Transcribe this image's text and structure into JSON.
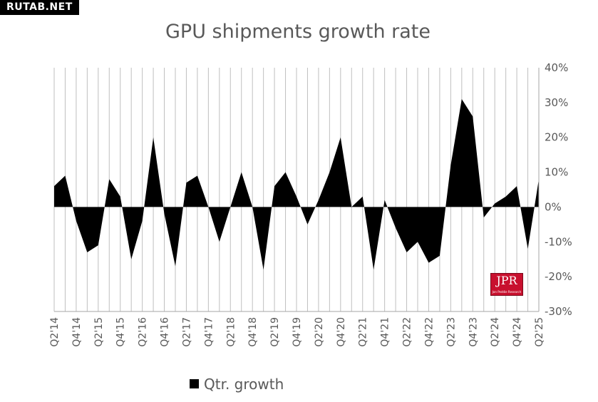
{
  "watermark": "RUTAB.NET",
  "logo": {
    "main": "JPR",
    "sub": "Jon Peddie Research",
    "color": "#c8102e"
  },
  "chart_data": {
    "type": "area",
    "title": "GPU shipments growth rate",
    "xlabel": "",
    "ylabel": "",
    "ylim": [
      -30,
      40
    ],
    "y_ticks": [
      "40%",
      "30%",
      "20%",
      "10%",
      "0%",
      "-10%",
      "-20%",
      "-30%"
    ],
    "y_axis_side": "right",
    "grid": {
      "vertical": true,
      "horizontal": false
    },
    "legend_position": "bottom-left",
    "fill_color": "#000000",
    "x": [
      "Q2'14",
      "Q3'14",
      "Q4'14",
      "Q1'15",
      "Q2'15",
      "Q3'15",
      "Q4'15",
      "Q1'16",
      "Q2'16",
      "Q3'16",
      "Q4'16",
      "Q1'17",
      "Q2'17",
      "Q3'17",
      "Q4'17",
      "Q1'18",
      "Q2'18",
      "Q3'18",
      "Q4'18",
      "Q1'19",
      "Q2'19",
      "Q3'19",
      "Q4'19",
      "Q1'20",
      "Q2'20",
      "Q3'20",
      "Q4'20",
      "Q1'21",
      "Q2'21",
      "Q3'21",
      "Q4'21",
      "Q1'22",
      "Q2'22",
      "Q3'22",
      "Q4'22",
      "Q1'23",
      "Q2'23",
      "Q3'23",
      "Q4'23",
      "Q1'24",
      "Q2'24",
      "Q3'24",
      "Q4'24",
      "Q1'25",
      "Q2'25"
    ],
    "x_tick_labels": [
      "Q2'14",
      "Q4'14",
      "Q2'15",
      "Q4'15",
      "Q2'16",
      "Q4'16",
      "Q2'17",
      "Q4'17",
      "Q2'18",
      "Q4'18",
      "Q2'19",
      "Q4'19",
      "Q2'20",
      "Q4'20",
      "Q2'21",
      "Q4'21",
      "Q2'22",
      "Q4'22",
      "Q2'23",
      "Q4'23",
      "Q2'24",
      "Q4'24",
      "Q2'25"
    ],
    "series": [
      {
        "name": "Qtr. growth",
        "values": [
          6,
          9,
          -4,
          -13,
          -11,
          8,
          3,
          -15,
          -4,
          20,
          -2,
          -17,
          7,
          9,
          0,
          -10,
          0,
          10,
          0,
          -18,
          6,
          10,
          3,
          -5,
          2,
          10,
          20,
          0,
          3,
          -18,
          2,
          -6,
          -13,
          -10,
          -16,
          -14,
          12,
          31,
          26,
          -3,
          1,
          3,
          6,
          -12,
          8
        ]
      }
    ]
  }
}
